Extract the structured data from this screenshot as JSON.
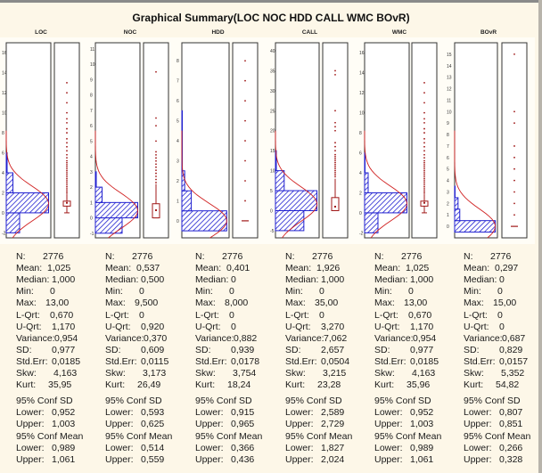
{
  "window": {
    "title": "Graphical Summary(LOC NOC HDD CALL WMC BOvR)"
  },
  "colors": {
    "histogram": "#2020d0",
    "curve": "#d02020",
    "boxplot": "#a01818",
    "background": "#fdf7e8"
  },
  "chart_data": {
    "type": "histogram-boxplot",
    "title": "Graphical Summary(LOC NOC HDD CALL WMC BOvR)",
    "panels": [
      {
        "name": "LOC",
        "yticks": [
          "16",
          "14",
          "12",
          "10",
          "8",
          "6",
          "4",
          "2",
          "0",
          "-2"
        ],
        "ylim": [
          -2.5,
          17
        ],
        "bins": [
          {
            "from": -2,
            "to": 0,
            "rel": 0.3
          },
          {
            "from": 0,
            "to": 2,
            "rel": 0.95
          },
          {
            "from": 2,
            "to": 4,
            "rel": 0.15
          },
          {
            "from": 4,
            "to": 6,
            "rel": 0.02
          }
        ],
        "box": {
          "min": 0,
          "q1": 0.67,
          "median": 1.0,
          "q3": 1.17,
          "whisker_hi": 1.9
        },
        "outliers": [
          2,
          2.2,
          2.4,
          2.6,
          2.8,
          3,
          3.2,
          3.4,
          3.6,
          3.8,
          4,
          4.2,
          4.4,
          4.6,
          4.8,
          5,
          5.2,
          5.5,
          5.8,
          6.2,
          6.6,
          7,
          7.4,
          8,
          8.4,
          9,
          9.4,
          10,
          11,
          12,
          13
        ]
      },
      {
        "name": "NOC",
        "yticks": [
          "11",
          "10",
          "9",
          "8",
          "7",
          "6",
          "5",
          "4",
          "3",
          "2",
          "1",
          "0",
          "-1"
        ],
        "ylim": [
          -1.3,
          11.4
        ],
        "bins": [
          {
            "from": -1,
            "to": 0,
            "rel": 0.6
          },
          {
            "from": 0,
            "to": 1,
            "rel": 0.95
          },
          {
            "from": 1,
            "to": 2,
            "rel": 0.15
          },
          {
            "from": 2,
            "to": 3,
            "rel": 0.02
          }
        ],
        "box": {
          "min": 0,
          "q1": 0,
          "median": 0.5,
          "q3": 0.92,
          "whisker_hi": 2.2
        },
        "outliers": [
          2.3,
          2.5,
          2.7,
          2.9,
          3.1,
          3.3,
          3.5,
          3.7,
          3.9,
          4.1,
          4.3,
          5,
          6,
          6.5,
          9.5
        ]
      },
      {
        "name": "HDD",
        "yticks": [
          "8",
          "7",
          "6",
          "5",
          "4",
          "3",
          "2",
          "1",
          "0"
        ],
        "ylim": [
          -0.85,
          8.9
        ],
        "bins": [
          {
            "from": -0.5,
            "to": 0.5,
            "rel": 0.95
          },
          {
            "from": 0.5,
            "to": 1.5,
            "rel": 0.2
          },
          {
            "from": 1.5,
            "to": 2.5,
            "rel": 0.06
          },
          {
            "from": 2.5,
            "to": 5.5,
            "rel": 0.01
          }
        ],
        "box": {
          "min": 0,
          "q1": 0,
          "median": 0,
          "q3": 0,
          "whisker_hi": 0
        },
        "outliers": [
          1,
          2,
          3,
          4,
          5,
          6,
          7,
          8
        ]
      },
      {
        "name": "CALL",
        "yticks": [
          "40",
          "35",
          "30",
          "25",
          "20",
          "15",
          "10",
          "5",
          "0",
          "-5"
        ],
        "ylim": [
          -6.8,
          42
        ],
        "bins": [
          {
            "from": -5,
            "to": 0,
            "rel": 0.65
          },
          {
            "from": 0,
            "to": 5,
            "rel": 0.95
          },
          {
            "from": 5,
            "to": 10,
            "rel": 0.2
          },
          {
            "from": 10,
            "to": 15,
            "rel": 0.02
          }
        ],
        "box": {
          "min": 0,
          "q1": 0,
          "median": 1.0,
          "q3": 3.27,
          "whisker_hi": 8
        },
        "outliers": [
          8.5,
          9,
          9.5,
          10,
          10.5,
          11,
          11.5,
          12,
          12.5,
          13,
          13.5,
          14,
          15,
          16,
          17,
          20,
          21,
          22,
          25,
          34,
          35
        ]
      },
      {
        "name": "WMC",
        "yticks": [
          "16",
          "14",
          "12",
          "10",
          "8",
          "6",
          "4",
          "2",
          "0",
          "-2"
        ],
        "ylim": [
          -2.5,
          17
        ],
        "bins": [
          {
            "from": -2,
            "to": 0,
            "rel": 0.3
          },
          {
            "from": 0,
            "to": 2,
            "rel": 0.95
          },
          {
            "from": 2,
            "to": 4,
            "rel": 0.08
          },
          {
            "from": 4,
            "to": 6,
            "rel": 0.01
          }
        ],
        "box": {
          "min": 0,
          "q1": 0.67,
          "median": 1.0,
          "q3": 1.17,
          "whisker_hi": 1.9
        },
        "outliers": [
          2,
          2.2,
          2.4,
          2.6,
          2.8,
          3,
          3.2,
          3.4,
          3.6,
          3.8,
          4,
          4.2,
          4.4,
          4.6,
          4.8,
          5,
          5.2,
          5.5,
          5.8,
          6.2,
          6.6,
          7,
          7.4,
          8,
          8.4,
          9,
          9.4,
          10,
          11,
          12,
          13
        ]
      },
      {
        "name": "BOvR",
        "yticks": [
          "15",
          "14",
          "13",
          "12",
          "11",
          "10",
          "9",
          "8",
          "7",
          "6",
          "5",
          "4",
          "3",
          "2",
          "1",
          "0"
        ],
        "ylim": [
          -1,
          16
        ],
        "bins": [
          {
            "from": -0.5,
            "to": 0.5,
            "rel": 0.95
          },
          {
            "from": 0.5,
            "to": 1.5,
            "rel": 0.12
          },
          {
            "from": 1.5,
            "to": 2.5,
            "rel": 0.08
          },
          {
            "from": 2.5,
            "to": 3.5,
            "rel": 0.01
          }
        ],
        "box": {
          "min": 0,
          "q1": 0,
          "median": 0,
          "q3": 0,
          "whisker_hi": 0
        },
        "outliers": [
          1,
          2,
          3,
          4,
          5,
          6,
          7,
          9,
          10,
          15
        ]
      }
    ]
  },
  "stats": [
    {
      "name": "LOC",
      "N": "2776",
      "Mean": "1,025",
      "Median": "1,000",
      "Min": "0",
      "Max": "13,00",
      "LQrt": "0,670",
      "UQrt": "1,170",
      "Variance": "0,954",
      "SD": "0,977",
      "StdErr": "0,0185",
      "Skw": "4,163",
      "Kurt": "35,95",
      "SDLower": "0,952",
      "SDUpper": "1,003",
      "MeanLower": "0,989",
      "MeanUpper": "1,061"
    },
    {
      "name": "NOC",
      "N": "2776",
      "Mean": "0,537",
      "Median": "0,500",
      "Min": "0",
      "Max": "9,500",
      "LQrt": "0",
      "UQrt": "0,920",
      "Variance": "0,370",
      "SD": "0,609",
      "StdErr": "0,0115",
      "Skw": "3,173",
      "Kurt": "26,49",
      "SDLower": "0,593",
      "SDUpper": "0,625",
      "MeanLower": "0,514",
      "MeanUpper": "0,559"
    },
    {
      "name": "HDD",
      "N": "2776",
      "Mean": "0,401",
      "Median": "0",
      "Min": "0",
      "Max": "8,000",
      "LQrt": "0",
      "UQrt": "0",
      "Variance": "0,882",
      "SD": "0,939",
      "StdErr": "0,0178",
      "Skw": "3,754",
      "Kurt": "18,24",
      "SDLower": "0,915",
      "SDUpper": "0,965",
      "MeanLower": "0,366",
      "MeanUpper": "0,436"
    },
    {
      "name": "CALL",
      "N": "2776",
      "Mean": "1,926",
      "Median": "1,000",
      "Min": "0",
      "Max": "35,00",
      "LQrt": "0",
      "UQrt": "3,270",
      "Variance": "7,062",
      "SD": "2,657",
      "StdErr": "0,0504",
      "Skw": "3,215",
      "Kurt": "23,28",
      "SDLower": "2,589",
      "SDUpper": "2,729",
      "MeanLower": "1,827",
      "MeanUpper": "2,024"
    },
    {
      "name": "WMC",
      "N": "2776",
      "Mean": "1,025",
      "Median": "1,000",
      "Min": "0",
      "Max": "13,00",
      "LQrt": "0,670",
      "UQrt": "1,170",
      "Variance": "0,954",
      "SD": "0,977",
      "StdErr": "0,0185",
      "Skw": "4,163",
      "Kurt": "35,96",
      "SDLower": "0,952",
      "SDUpper": "1,003",
      "MeanLower": "0,989",
      "MeanUpper": "1,061"
    },
    {
      "name": "BOvR",
      "N": "2776",
      "Mean": "0,297",
      "Median": "0",
      "Min": "0",
      "Max": "15,00",
      "LQrt": "0",
      "UQrt": "0",
      "Variance": "0,687",
      "SD": "0,829",
      "StdErr": "0,0157",
      "Skw": "5,352",
      "Kurt": "54,82",
      "SDLower": "0,807",
      "SDUpper": "0,851",
      "MeanLower": "0,266",
      "MeanUpper": "0,328"
    }
  ],
  "labels": {
    "N": "N:",
    "Mean": "Mean:",
    "Median": "Median:",
    "Min": "Min:",
    "Max": "Max:",
    "LQrt": "L-Qrt:",
    "UQrt": "U-Qrt:",
    "Variance": "Variance:",
    "SD": "SD:",
    "StdErr": "Std.Err:",
    "Skw": "Skw:",
    "Kurt": "Kurt:",
    "ConfSD": "95% Conf SD",
    "ConfMean": "95% Conf Mean",
    "Lower": "Lower:",
    "Upper": "Upper:"
  }
}
